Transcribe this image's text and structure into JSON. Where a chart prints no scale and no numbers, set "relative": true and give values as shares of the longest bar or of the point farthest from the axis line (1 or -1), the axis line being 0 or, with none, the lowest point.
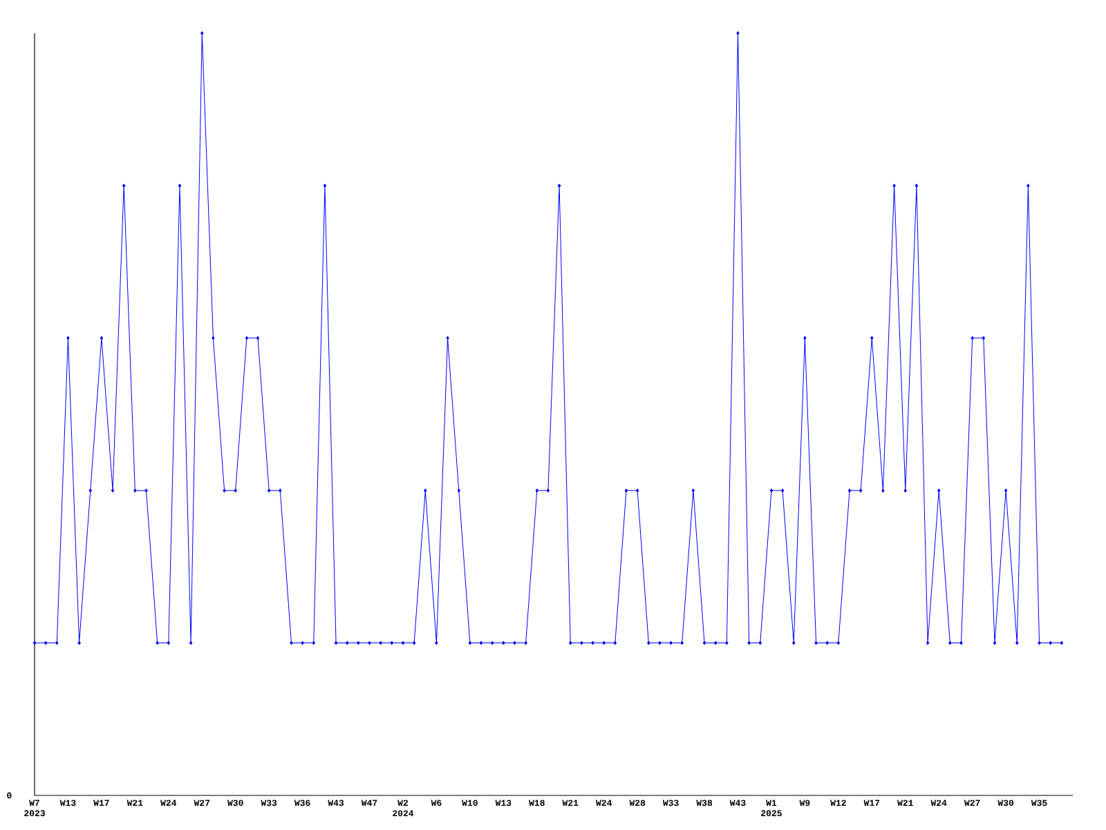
{
  "chart_data": {
    "type": "line",
    "relative": true,
    "color": "#0000ff",
    "marker": "diamond",
    "line_style": "solid",
    "annotations": [
      "0"
    ],
    "categories": [
      "W7 2023",
      null,
      null,
      "W13",
      null,
      null,
      "W17",
      null,
      null,
      "W21",
      null,
      null,
      "W24",
      null,
      null,
      "W27",
      null,
      null,
      "W30",
      null,
      null,
      "W33",
      null,
      null,
      "W36",
      null,
      null,
      "W43",
      null,
      null,
      "W47",
      null,
      null,
      "W2 2024",
      null,
      null,
      "W6",
      null,
      null,
      "W10",
      null,
      null,
      "W13",
      null,
      null,
      "W18",
      null,
      null,
      "W21",
      null,
      null,
      "W24",
      null,
      null,
      "W28",
      null,
      null,
      "W33",
      null,
      null,
      "W38",
      null,
      null,
      "W43",
      null,
      null,
      "W1 2025",
      null,
      null,
      "W9",
      null,
      null,
      "W12",
      null,
      null,
      "W17",
      null,
      null,
      "W21",
      null,
      null,
      "W24",
      null,
      null,
      "W27",
      null,
      null,
      "W30",
      null,
      null,
      "W35",
      null,
      null
    ],
    "values": [
      0.2,
      0.2,
      0.2,
      0.6,
      0.2,
      0.4,
      0.6,
      0.4,
      0.8,
      0.4,
      0.4,
      0.2,
      0.2,
      0.8,
      0.2,
      1,
      0.6,
      0.4,
      0.4,
      0.6,
      0.6,
      0.4,
      0.4,
      0.2,
      0.2,
      0.2,
      0.8,
      0.2,
      0.2,
      0.2,
      0.2,
      0.2,
      0.2,
      0.2,
      0.2,
      0.4,
      0.2,
      0.6,
      0.4,
      0.2,
      0.2,
      0.2,
      0.2,
      0.2,
      0.2,
      0.4,
      0.4,
      0.8,
      0.2,
      0.2,
      0.2,
      0.2,
      0.2,
      0.4,
      0.4,
      0.2,
      0.2,
      0.2,
      0.2,
      0.4,
      0.2,
      0.2,
      0.2,
      1,
      0.2,
      0.2,
      0.4,
      0.4,
      0.2,
      0.6,
      0.2,
      0.2,
      0.2,
      0.4,
      0.4,
      0.6,
      0.4,
      0.8,
      0.4,
      0.8,
      0.2,
      0.4,
      0.2,
      0.2,
      0.6,
      0.6,
      0.2,
      0.4,
      0.2,
      0.8,
      0.2,
      0.2,
      0.2
    ]
  }
}
